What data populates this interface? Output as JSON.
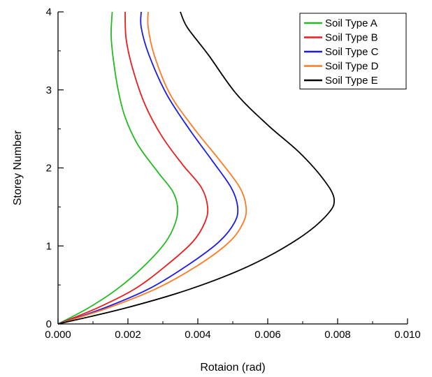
{
  "chart_data": {
    "type": "line",
    "xlabel": "Rotaion (rad)",
    "ylabel": "Storey Number",
    "xlim": [
      0.0,
      0.01
    ],
    "ylim": [
      0,
      4
    ],
    "x_ticks": [
      "0.000",
      "0.002",
      "0.004",
      "0.006",
      "0.008",
      "0.010"
    ],
    "y_ticks": [
      "0",
      "1",
      "2",
      "3",
      "4"
    ],
    "grid": false,
    "legend_position": "top-right",
    "series": [
      {
        "name": "Soil Type A",
        "color": "#22bb22",
        "points": [
          [
            0.0,
            0.0
          ],
          [
            0.00085,
            0.2
          ],
          [
            0.0017,
            0.45
          ],
          [
            0.00248,
            0.75
          ],
          [
            0.00308,
            1.05
          ],
          [
            0.00336,
            1.3
          ],
          [
            0.00342,
            1.5
          ],
          [
            0.00328,
            1.7
          ],
          [
            0.00285,
            1.95
          ],
          [
            0.00228,
            2.3
          ],
          [
            0.00192,
            2.65
          ],
          [
            0.00172,
            3.0
          ],
          [
            0.00158,
            3.4
          ],
          [
            0.00152,
            3.7
          ],
          [
            0.00155,
            4.0
          ]
        ]
      },
      {
        "name": "Soil Type B",
        "color": "#ee1c1c",
        "points": [
          [
            0.0,
            0.0
          ],
          [
            0.0011,
            0.2
          ],
          [
            0.0022,
            0.45
          ],
          [
            0.0031,
            0.75
          ],
          [
            0.00385,
            1.05
          ],
          [
            0.0042,
            1.3
          ],
          [
            0.00428,
            1.5
          ],
          [
            0.0041,
            1.75
          ],
          [
            0.00355,
            2.05
          ],
          [
            0.00298,
            2.4
          ],
          [
            0.0025,
            2.8
          ],
          [
            0.00215,
            3.25
          ],
          [
            0.00195,
            3.65
          ],
          [
            0.00192,
            4.0
          ]
        ]
      },
      {
        "name": "Soil Type C",
        "color": "#1a1aee",
        "points": [
          [
            0.0,
            0.0
          ],
          [
            0.0013,
            0.2
          ],
          [
            0.0026,
            0.45
          ],
          [
            0.0037,
            0.75
          ],
          [
            0.0046,
            1.05
          ],
          [
            0.00505,
            1.3
          ],
          [
            0.00514,
            1.5
          ],
          [
            0.00495,
            1.75
          ],
          [
            0.0044,
            2.1
          ],
          [
            0.00375,
            2.5
          ],
          [
            0.0031,
            2.95
          ],
          [
            0.0026,
            3.45
          ],
          [
            0.00238,
            3.8
          ],
          [
            0.00238,
            4.0
          ]
        ]
      },
      {
        "name": "Soil Type D",
        "color": "#ff7a22",
        "points": [
          [
            0.0,
            0.0
          ],
          [
            0.0014,
            0.2
          ],
          [
            0.0028,
            0.45
          ],
          [
            0.004,
            0.75
          ],
          [
            0.0049,
            1.05
          ],
          [
            0.0053,
            1.3
          ],
          [
            0.00538,
            1.5
          ],
          [
            0.0052,
            1.75
          ],
          [
            0.00462,
            2.1
          ],
          [
            0.0039,
            2.5
          ],
          [
            0.0032,
            2.95
          ],
          [
            0.00275,
            3.45
          ],
          [
            0.00258,
            3.8
          ],
          [
            0.00258,
            4.0
          ]
        ]
      },
      {
        "name": "Soil Type E",
        "color": "#000000",
        "points": [
          [
            0.0,
            0.0
          ],
          [
            0.0019,
            0.2
          ],
          [
            0.0038,
            0.45
          ],
          [
            0.0055,
            0.75
          ],
          [
            0.0069,
            1.1
          ],
          [
            0.0077,
            1.4
          ],
          [
            0.0079,
            1.6
          ],
          [
            0.0076,
            1.85
          ],
          [
            0.0069,
            2.2
          ],
          [
            0.006,
            2.55
          ],
          [
            0.0051,
            2.95
          ],
          [
            0.0043,
            3.45
          ],
          [
            0.0037,
            3.8
          ],
          [
            0.0035,
            4.0
          ]
        ]
      }
    ]
  }
}
